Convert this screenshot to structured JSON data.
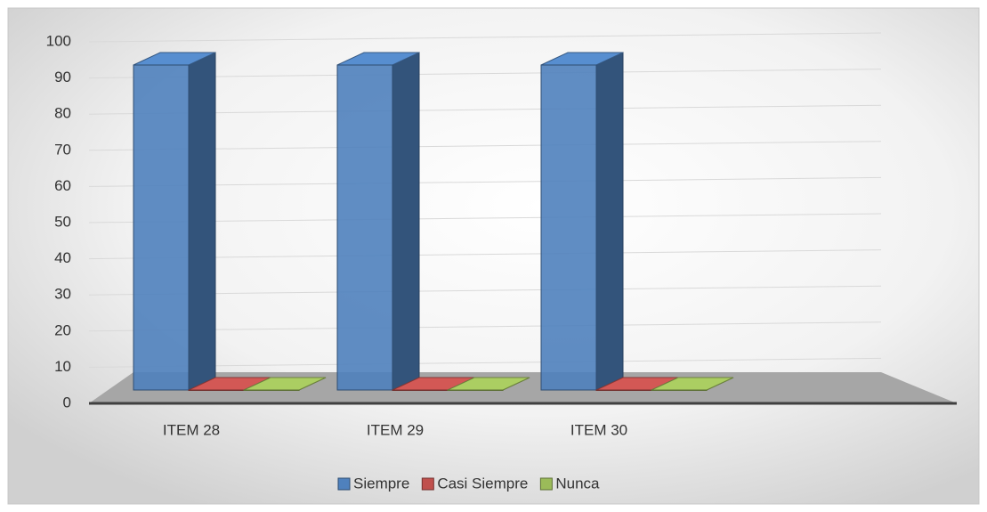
{
  "chart_data": {
    "type": "bar3d",
    "categories": [
      "ITEM 28",
      "ITEM 29",
      "ITEM 30"
    ],
    "series": [
      {
        "name": "Siempre",
        "color": "#4f81bd",
        "values": [
          100,
          100,
          100
        ]
      },
      {
        "name": "Casi Siempre",
        "color": "#c0504d",
        "values": [
          0,
          0,
          0
        ]
      },
      {
        "name": "Nunca",
        "color": "#9bbb59",
        "values": [
          0,
          0,
          0
        ]
      }
    ],
    "ylim": [
      0,
      100
    ],
    "yticks": [
      0,
      10,
      20,
      30,
      40,
      50,
      60,
      70,
      80,
      90,
      100
    ],
    "grid": true,
    "legend": "bottom"
  }
}
